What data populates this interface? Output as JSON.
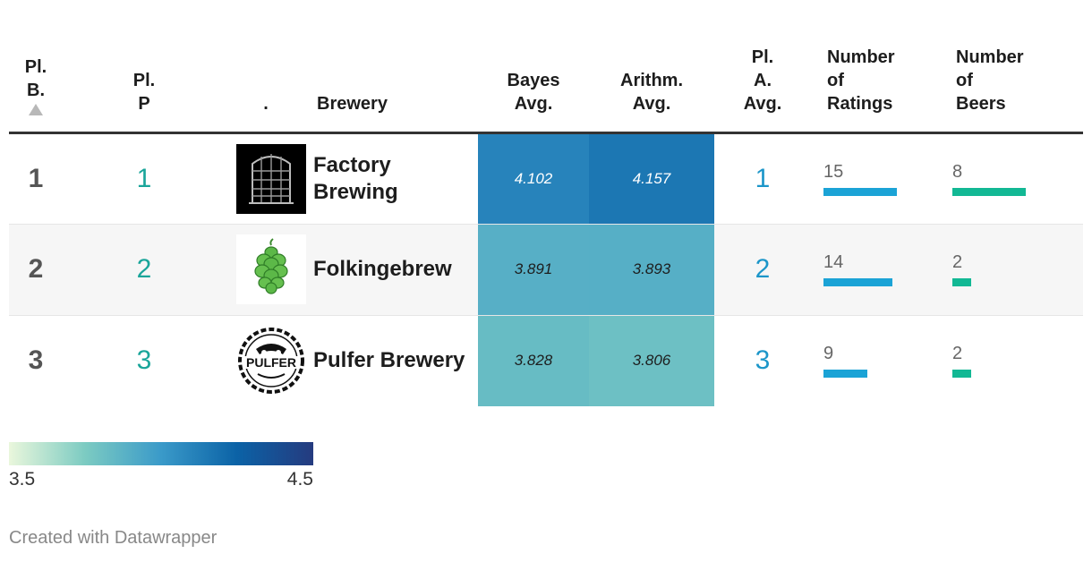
{
  "table": {
    "headers": {
      "pl_b": [
        "Pl.",
        "B."
      ],
      "pl_p": [
        "Pl.",
        "P"
      ],
      "logo": ".",
      "brewery": "Brewery",
      "bayes": [
        "Bayes",
        "Avg."
      ],
      "arith": [
        "Arithm.",
        "Avg."
      ],
      "pl_a": [
        "Pl.",
        "A.",
        "Avg."
      ],
      "ratings": [
        "Number",
        "of",
        "Ratings"
      ],
      "beers": [
        "Number",
        "of",
        "Beers"
      ]
    },
    "rows": [
      {
        "pl_b": "1",
        "pl_p": "1",
        "logo": "factory-brewing-logo",
        "brewery": "Factory Brewing",
        "bayes": "4.102",
        "arith": "4.157",
        "pl_a": "1",
        "ratings": "15",
        "beers": "8"
      },
      {
        "pl_b": "2",
        "pl_p": "2",
        "logo": "hop-cone-logo",
        "brewery": "Folkingebrew",
        "bayes": "3.891",
        "arith": "3.893",
        "pl_a": "2",
        "ratings": "14",
        "beers": "2"
      },
      {
        "pl_b": "3",
        "pl_p": "3",
        "logo": "pulfer-brewery-logo",
        "brewery": "Pulfer Brewery",
        "bayes": "3.828",
        "arith": "3.806",
        "pl_a": "3",
        "ratings": "9",
        "beers": "2"
      }
    ]
  },
  "chart_data": {
    "type": "table",
    "columns": [
      "Pl. B.",
      "Pl. P",
      ".",
      "Brewery",
      "Bayes Avg.",
      "Arithm. Avg.",
      "Pl. A. Avg.",
      "Number of Ratings",
      "Number of Beers"
    ],
    "sort": {
      "column": "Pl. B.",
      "direction": "ascending"
    },
    "rows": [
      {
        "pl_b": 1,
        "pl_p": 1,
        "brewery": "Factory Brewing",
        "bayes_avg": 4.102,
        "arith_avg": 4.157,
        "pl_a_avg": 1,
        "ratings": 15,
        "beers": 8
      },
      {
        "pl_b": 2,
        "pl_p": 2,
        "brewery": "Folkingebrew",
        "bayes_avg": 3.891,
        "arith_avg": 3.893,
        "pl_a_avg": 2,
        "ratings": 14,
        "beers": 2
      },
      {
        "pl_b": 3,
        "pl_p": 3,
        "brewery": "Pulfer Brewery",
        "bayes_avg": 3.828,
        "arith_avg": 3.806,
        "pl_a_avg": 3,
        "ratings": 9,
        "beers": 2
      }
    ],
    "heatmap_scale": {
      "min": 3.5,
      "max": 4.5,
      "colors": [
        "#eaf7dc",
        "#7ccbc2",
        "#3a9ac9",
        "#0b62a6",
        "#253b7f"
      ]
    },
    "bar_max": {
      "ratings": 15,
      "beers": 8
    },
    "bar_colors": {
      "ratings": "#1ba3d6",
      "beers": "#12b894"
    }
  },
  "legend": {
    "min_label": "3.5",
    "max_label": "4.5"
  },
  "footer": {
    "credit": "Created with Datawrapper"
  },
  "colors": {
    "rank_p": "#1aa59a",
    "rank_a": "#1c96c9",
    "header_rule": "#333333"
  }
}
